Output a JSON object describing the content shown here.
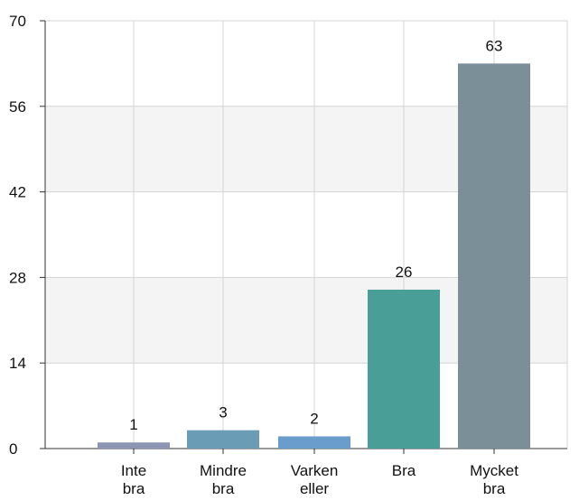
{
  "chart_data": {
    "type": "bar",
    "title": "",
    "xlabel": "",
    "ylabel": "",
    "categories": [
      [
        "Inte",
        "bra"
      ],
      [
        "Mindre",
        "bra"
      ],
      [
        "Varken",
        "eller"
      ],
      [
        "Bra"
      ],
      [
        "Mycket",
        "bra"
      ]
    ],
    "values": [
      1,
      3,
      2,
      26,
      63
    ],
    "ylim": [
      0,
      70
    ],
    "yticks": [
      0,
      14,
      28,
      42,
      56,
      70
    ],
    "grid": true,
    "alternating_bands": true,
    "colors": [
      "#8c96b4",
      "#6a9cb5",
      "#6a9ccc",
      "#4a9e98",
      "#7a8f98"
    ],
    "band_color": "#f4f4f4",
    "grid_color": "#d4d4d4"
  }
}
